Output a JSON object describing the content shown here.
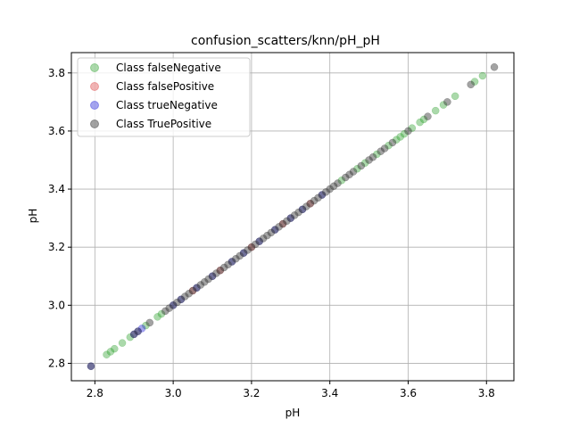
{
  "chart_data": {
    "type": "scatter",
    "title": "confusion_scatters/knn/pH_pH",
    "xlabel": "pH",
    "ylabel": "pH",
    "xlim": [
      2.74,
      3.87
    ],
    "ylim": [
      2.74,
      3.87
    ],
    "xticks": [
      "2.8",
      "3.0",
      "3.2",
      "3.4",
      "3.6",
      "3.8"
    ],
    "yticks": [
      "2.8",
      "3.0",
      "3.2",
      "3.4",
      "3.6",
      "3.8"
    ],
    "grid": true,
    "legend_position": "top-left",
    "series": [
      {
        "name": "Class falseNegative",
        "color": "#2ca02c",
        "alpha": 0.4,
        "points": [
          [
            2.83,
            2.83
          ],
          [
            2.84,
            2.84
          ],
          [
            2.85,
            2.85
          ],
          [
            2.87,
            2.87
          ],
          [
            2.89,
            2.89
          ],
          [
            2.93,
            2.93
          ],
          [
            2.96,
            2.96
          ],
          [
            2.97,
            2.97
          ],
          [
            3.43,
            3.43
          ],
          [
            3.47,
            3.47
          ],
          [
            3.49,
            3.49
          ],
          [
            3.52,
            3.52
          ],
          [
            3.55,
            3.55
          ],
          [
            3.57,
            3.57
          ],
          [
            3.58,
            3.58
          ],
          [
            3.59,
            3.59
          ],
          [
            3.61,
            3.61
          ],
          [
            3.63,
            3.63
          ],
          [
            3.64,
            3.64
          ],
          [
            3.67,
            3.67
          ],
          [
            3.69,
            3.69
          ],
          [
            3.72,
            3.72
          ],
          [
            3.77,
            3.77
          ],
          [
            3.79,
            3.79
          ]
        ]
      },
      {
        "name": "Class falsePositive",
        "color": "#d62728",
        "alpha": 0.35,
        "points": [
          [
            3.05,
            3.05
          ],
          [
            3.12,
            3.12
          ],
          [
            3.2,
            3.2
          ],
          [
            3.28,
            3.28
          ],
          [
            3.35,
            3.35
          ]
        ]
      },
      {
        "name": "Class trueNegative",
        "color": "#1f1fd6",
        "alpha": 0.4,
        "points": [
          [
            2.79,
            2.79
          ],
          [
            2.9,
            2.9
          ],
          [
            2.91,
            2.91
          ],
          [
            2.92,
            2.92
          ],
          [
            3.0,
            3.0
          ],
          [
            3.02,
            3.02
          ],
          [
            3.06,
            3.06
          ],
          [
            3.1,
            3.1
          ],
          [
            3.15,
            3.15
          ],
          [
            3.18,
            3.18
          ],
          [
            3.22,
            3.22
          ],
          [
            3.26,
            3.26
          ],
          [
            3.3,
            3.3
          ],
          [
            3.33,
            3.33
          ],
          [
            3.38,
            3.38
          ]
        ]
      },
      {
        "name": "Class TruePositive",
        "color": "#333333",
        "alpha": 0.45,
        "points": [
          [
            2.79,
            2.79
          ],
          [
            2.9,
            2.9
          ],
          [
            2.91,
            2.91
          ],
          [
            2.94,
            2.94
          ],
          [
            2.98,
            2.98
          ],
          [
            2.99,
            2.99
          ],
          [
            3.0,
            3.0
          ],
          [
            3.01,
            3.01
          ],
          [
            3.02,
            3.02
          ],
          [
            3.03,
            3.03
          ],
          [
            3.04,
            3.04
          ],
          [
            3.05,
            3.05
          ],
          [
            3.06,
            3.06
          ],
          [
            3.07,
            3.07
          ],
          [
            3.08,
            3.08
          ],
          [
            3.09,
            3.09
          ],
          [
            3.1,
            3.1
          ],
          [
            3.11,
            3.11
          ],
          [
            3.12,
            3.12
          ],
          [
            3.13,
            3.13
          ],
          [
            3.14,
            3.14
          ],
          [
            3.15,
            3.15
          ],
          [
            3.16,
            3.16
          ],
          [
            3.17,
            3.17
          ],
          [
            3.18,
            3.18
          ],
          [
            3.19,
            3.19
          ],
          [
            3.2,
            3.2
          ],
          [
            3.21,
            3.21
          ],
          [
            3.22,
            3.22
          ],
          [
            3.23,
            3.23
          ],
          [
            3.24,
            3.24
          ],
          [
            3.25,
            3.25
          ],
          [
            3.26,
            3.26
          ],
          [
            3.27,
            3.27
          ],
          [
            3.28,
            3.28
          ],
          [
            3.29,
            3.29
          ],
          [
            3.3,
            3.3
          ],
          [
            3.31,
            3.31
          ],
          [
            3.32,
            3.32
          ],
          [
            3.33,
            3.33
          ],
          [
            3.34,
            3.34
          ],
          [
            3.35,
            3.35
          ],
          [
            3.36,
            3.36
          ],
          [
            3.37,
            3.37
          ],
          [
            3.38,
            3.38
          ],
          [
            3.39,
            3.39
          ],
          [
            3.4,
            3.4
          ],
          [
            3.41,
            3.41
          ],
          [
            3.42,
            3.42
          ],
          [
            3.44,
            3.44
          ],
          [
            3.45,
            3.45
          ],
          [
            3.46,
            3.46
          ],
          [
            3.48,
            3.48
          ],
          [
            3.5,
            3.5
          ],
          [
            3.51,
            3.51
          ],
          [
            3.53,
            3.53
          ],
          [
            3.54,
            3.54
          ],
          [
            3.56,
            3.56
          ],
          [
            3.6,
            3.6
          ],
          [
            3.65,
            3.65
          ],
          [
            3.7,
            3.7
          ],
          [
            3.76,
            3.76
          ],
          [
            3.82,
            3.82
          ]
        ]
      }
    ]
  }
}
